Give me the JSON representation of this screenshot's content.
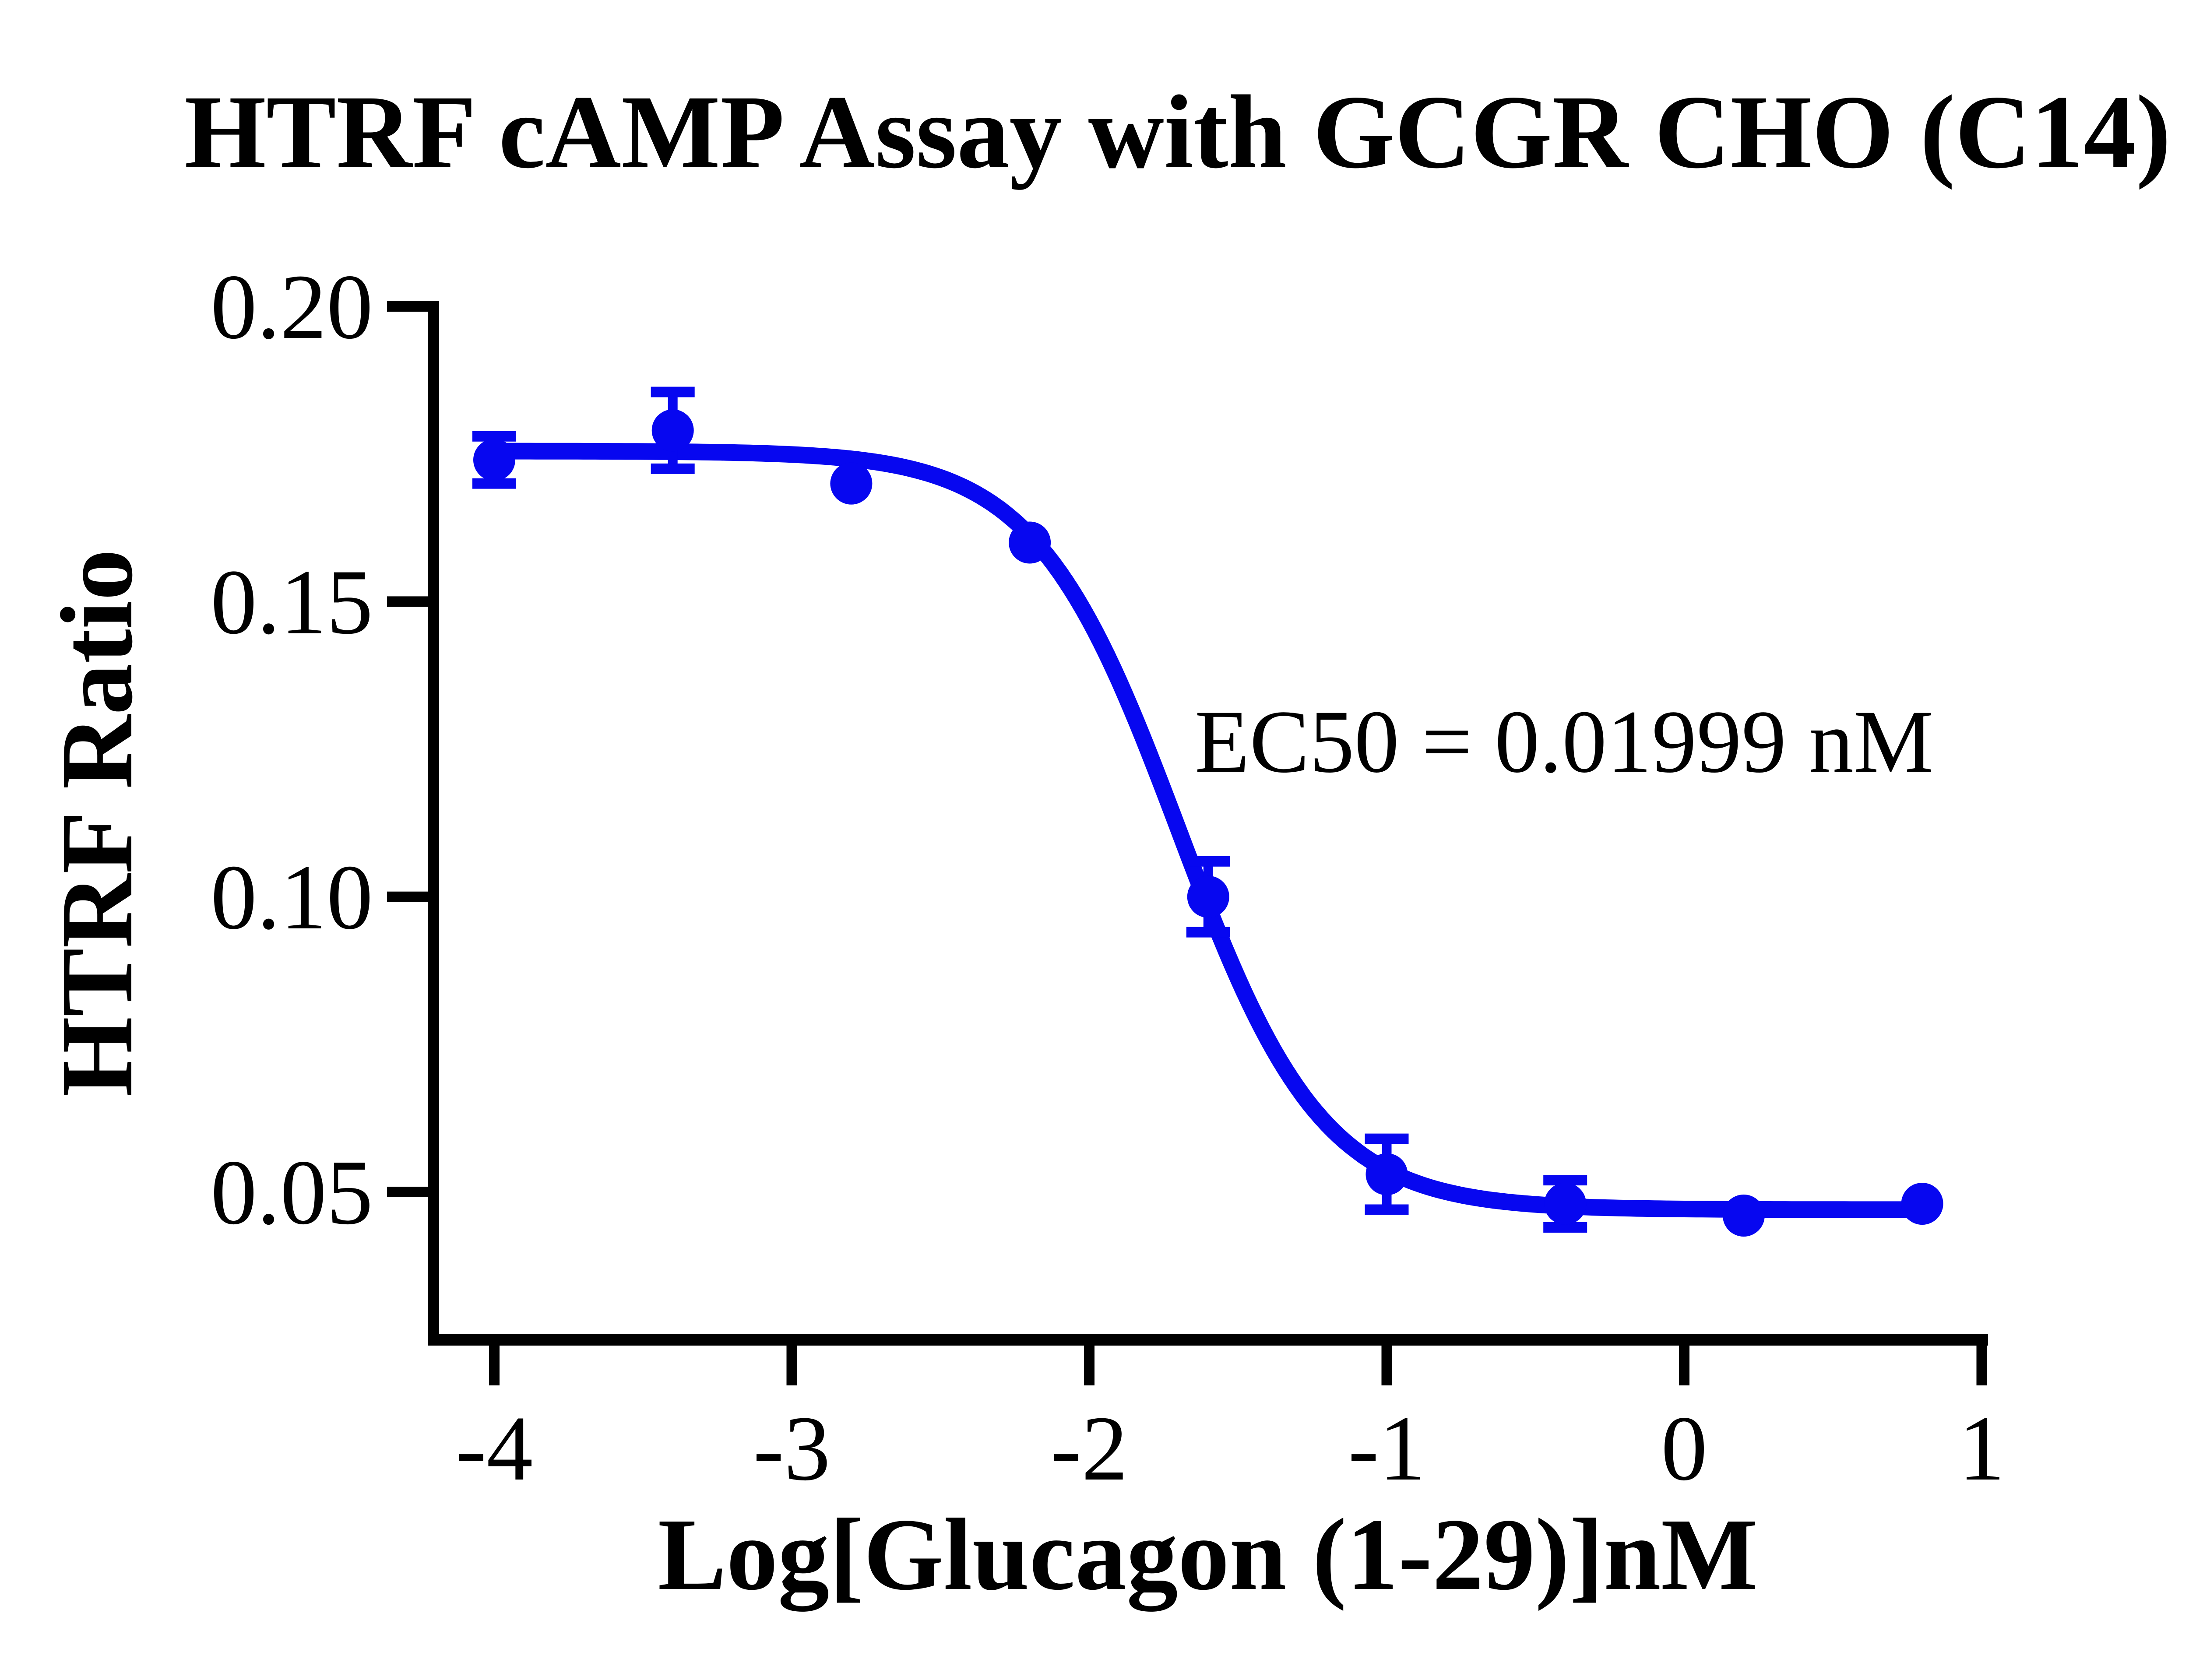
{
  "title": "HTRF cAMP Assay with GCGR CHO (C14)",
  "colors": {
    "series_blue": "#0707F0",
    "axis_black": "#000000",
    "background": "#FFFFFF"
  },
  "chart_data": {
    "type": "scatter",
    "subtype": "sigmoidal-dose-response-fit",
    "title": "HTRF cAMP Assay with GCGR CHO (C14)",
    "xlabel": "Log[Glucagon (1-29)]nM",
    "ylabel": "HTRF Ratio",
    "annotation": "EC50 = 0.01999 nM",
    "grid": false,
    "legend": null,
    "xlim": [
      -4.22,
      1.02
    ],
    "ylim": [
      0.025,
      0.201
    ],
    "x_ticks": [
      {
        "value": -4,
        "label": "-4"
      },
      {
        "value": -3,
        "label": "-3"
      },
      {
        "value": -2,
        "label": "-2"
      },
      {
        "value": -1,
        "label": "-1"
      },
      {
        "value": 0,
        "label": "0"
      },
      {
        "value": 1,
        "label": "1"
      }
    ],
    "y_ticks": [
      {
        "value": 0.2,
        "label": "0.20"
      },
      {
        "value": 0.15,
        "label": "0.15"
      },
      {
        "value": 0.1,
        "label": "0.10"
      },
      {
        "value": 0.05,
        "label": "0.05"
      }
    ],
    "series": [
      {
        "marker": "circle",
        "color": "#0707F0",
        "x": [
          -4.0,
          -3.4,
          -2.8,
          -2.2,
          -1.6,
          -1.0,
          -0.4,
          0.2,
          0.8
        ],
        "y": [
          0.174,
          0.179,
          0.17,
          0.16,
          0.1,
          0.053,
          0.048,
          0.046,
          0.048
        ],
        "sem": [
          0.004,
          0.0065,
          0,
          0,
          0.006,
          0.006,
          0.004,
          0,
          0
        ]
      }
    ],
    "fit": {
      "model": "four-parameter-logistic",
      "top": 0.1755,
      "bottom": 0.047,
      "logEC50": -1.699,
      "hill_slope": 1.8,
      "ec50_nM": 0.01999,
      "x_start": -4.0,
      "x_end": 0.8
    }
  }
}
